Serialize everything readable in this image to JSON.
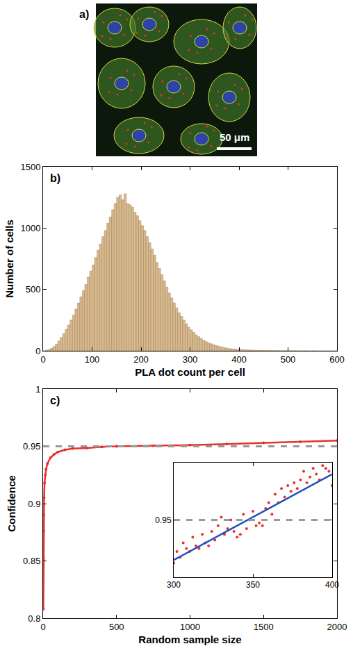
{
  "image_panel": {
    "label": "a)",
    "scale_bar": "50 μm"
  },
  "chart_data": [
    {
      "type": "histogram",
      "label": "b)",
      "x_label": "PLA dot count per cell",
      "y_label": "Number of cells",
      "color": "#d9bb8f",
      "bins": [
        0,
        5,
        10,
        15,
        20,
        25,
        30,
        35,
        40,
        45,
        50,
        55,
        60,
        65,
        70,
        75,
        80,
        85,
        90,
        95,
        100,
        105,
        110,
        115,
        120,
        125,
        130,
        135,
        140,
        145,
        150,
        155,
        160,
        165,
        170,
        175,
        180,
        185,
        190,
        195,
        200,
        205,
        210,
        215,
        220,
        225,
        230,
        235,
        240,
        245,
        250,
        255,
        260,
        265,
        270,
        275,
        280,
        285,
        290,
        295,
        300,
        305,
        310,
        315,
        320,
        325,
        330,
        335,
        340,
        345,
        350,
        355,
        360,
        365,
        370,
        375,
        380,
        385,
        390,
        395,
        400,
        405,
        410,
        415,
        420,
        425,
        430,
        435,
        440,
        445,
        450,
        455,
        460,
        465,
        470,
        475,
        480,
        485,
        490,
        495,
        500,
        505,
        510,
        515,
        520,
        525,
        530,
        535,
        540,
        545,
        550,
        555,
        560,
        565,
        570,
        575,
        580,
        585,
        590,
        595,
        600
      ],
      "counts": [
        0,
        5,
        10,
        20,
        35,
        55,
        80,
        110,
        140,
        175,
        210,
        250,
        290,
        340,
        390,
        440,
        490,
        540,
        600,
        650,
        700,
        760,
        820,
        870,
        930,
        980,
        1040,
        1090,
        1150,
        1200,
        1250,
        1270,
        1230,
        1280,
        1200,
        1190,
        1170,
        1130,
        1100,
        1060,
        1020,
        980,
        930,
        880,
        830,
        780,
        720,
        670,
        620,
        570,
        520,
        470,
        430,
        390,
        350,
        310,
        280,
        250,
        220,
        190,
        170,
        150,
        130,
        115,
        100,
        85,
        75,
        65,
        58,
        50,
        44,
        38,
        33,
        28,
        24,
        20,
        17,
        15,
        13,
        11,
        10,
        9,
        8,
        7,
        6,
        5,
        5,
        4,
        4,
        3,
        3,
        3,
        2,
        2,
        2,
        2,
        1,
        1,
        1,
        1,
        1,
        1,
        1,
        1,
        0,
        1,
        0,
        1,
        0,
        0,
        1,
        0,
        0,
        0,
        0,
        0,
        0,
        0,
        0,
        0
      ],
      "xlim": [
        0,
        600
      ],
      "ylim": [
        0,
        1500
      ],
      "xticks": [
        0,
        100,
        200,
        300,
        400,
        500,
        600
      ],
      "yticks": [
        0,
        500,
        1000,
        1500
      ]
    },
    {
      "type": "scatter",
      "label": "c)",
      "x_label": "Random sample size",
      "y_label": "Confidence",
      "color": "#e8302a",
      "marker": "circle",
      "line_style": "solid",
      "x": [
        2,
        3,
        4,
        5,
        7,
        10,
        15,
        20,
        30,
        50,
        75,
        100,
        150,
        200,
        300,
        400,
        500,
        750,
        1000,
        1250,
        1500,
        1750,
        2000
      ],
      "values": [
        0.808,
        0.852,
        0.876,
        0.89,
        0.905,
        0.918,
        0.925,
        0.93,
        0.935,
        0.94,
        0.943,
        0.945,
        0.947,
        0.948,
        0.9485,
        0.9495,
        0.95,
        0.9505,
        0.951,
        0.952,
        0.953,
        0.954,
        0.955
      ],
      "xlim": [
        0,
        2000
      ],
      "ylim": [
        0.8,
        1
      ],
      "xticks": [
        0,
        500,
        1000,
        1500,
        2000
      ],
      "yticks": [
        0.8,
        0.85,
        0.9,
        0.95,
        1
      ],
      "reference_line": {
        "y": 0.95,
        "color": "#999999",
        "line_style": "dash"
      },
      "inset": {
        "type": "scatter",
        "xlim": [
          300,
          400
        ],
        "ylim": [
          0.949,
          0.951
        ],
        "xticks": [
          300,
          350,
          400
        ],
        "yticks": [
          0.95
        ],
        "reference_line": {
          "y": 0.95,
          "color": "#999999",
          "line_style": "dash"
        },
        "series": [
          {
            "type": "scatter",
            "color": "#e8302a",
            "marker": "circle",
            "x": [
              300,
              302,
              304,
              306,
              308,
              310,
              312,
              314,
              316,
              318,
              320,
              322,
              324,
              326,
              328,
              330,
              332,
              334,
              336,
              338,
              340,
              342,
              344,
              346,
              348,
              350,
              352,
              354,
              356,
              358,
              360,
              362,
              364,
              366,
              368,
              370,
              372,
              374,
              376,
              378,
              380,
              382,
              384,
              386,
              388,
              390,
              392,
              394,
              396,
              398,
              400
            ],
            "values": [
              0.94925,
              0.94945,
              0.94935,
              0.9496,
              0.9495,
              0.94945,
              0.9497,
              0.94955,
              0.9495,
              0.94975,
              0.9496,
              0.94955,
              0.9498,
              0.94965,
              0.9499,
              0.95005,
              0.94975,
              0.94985,
              0.95,
              0.9498,
              0.9497,
              0.94975,
              0.9501,
              0.94985,
              0.95,
              0.95015,
              0.9499,
              0.94995,
              0.9499,
              0.9502,
              0.9503,
              0.9501,
              0.95045,
              0.9503,
              0.95055,
              0.9504,
              0.9506,
              0.9505,
              0.95065,
              0.95055,
              0.9507,
              0.95085,
              0.95065,
              0.95075,
              0.9509,
              0.9508,
              0.9507,
              0.95095,
              0.9509,
              0.95085,
              0.9506
            ]
          },
          {
            "type": "line",
            "color": "#1f4fbf",
            "line_style": "solid",
            "x": [
              300,
              400
            ],
            "values": [
              0.9493,
              0.9508
            ]
          }
        ]
      }
    }
  ]
}
